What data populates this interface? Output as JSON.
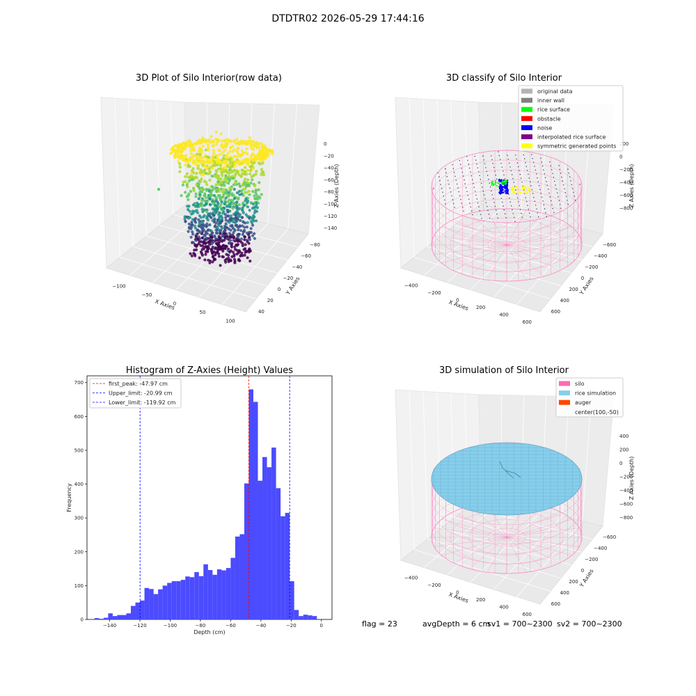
{
  "figure_title": "DTDTR02 2026-05-29 17:44:16",
  "status": {
    "flag": "flag = 23",
    "avg_depth": "avgDepth = 6 cm",
    "sv1": "sv1 = 700~2300",
    "sv2": "sv2 = 700~2300"
  },
  "chart_data": [
    {
      "type": "scatter",
      "title": "3D Plot of Silo Interior(row data)",
      "xlabel": "X Axies",
      "ylabel": "Y Axies",
      "zlabel": "Z Axies (Depth)",
      "x_ticks": [
        "−100",
        "−50",
        "0",
        "50",
        "100"
      ],
      "y_ticks": [
        "−80",
        "−60",
        "−40",
        "−20",
        "0",
        "20",
        "40"
      ],
      "z_ticks": [
        "0",
        "−20",
        "−40",
        "−60",
        "−80",
        "−100",
        "−120",
        "−140"
      ],
      "colormap": [
        "#440154",
        "#3b528b",
        "#21918c",
        "#5ec962",
        "#a9db30",
        "#fde725"
      ]
    },
    {
      "type": "scatter",
      "title": "3D classify of Silo Interior",
      "xlabel": "X Axies",
      "ylabel": "Y Axies",
      "zlabel": "Z Axies (Depth)",
      "x_ticks": [
        "−400",
        "−200",
        "0",
        "200",
        "400",
        "600"
      ],
      "y_ticks": [
        "−600",
        "−400",
        "−200",
        "0",
        "200",
        "400",
        "600"
      ],
      "z_ticks": [
        "200",
        "0",
        "−200",
        "−400",
        "−600",
        "−800"
      ],
      "legend": [
        {
          "label": "original data",
          "color": "#b3b3b3"
        },
        {
          "label": "inner wall",
          "color": "#808080"
        },
        {
          "label": "rice surface",
          "color": "#00ff00"
        },
        {
          "label": "obstacle",
          "color": "#ff0000"
        },
        {
          "label": "noise",
          "color": "#0000ff"
        },
        {
          "label": "interpolated rice surface",
          "color": "#800080"
        },
        {
          "label": "symmetric generated points",
          "color": "#ffff00"
        }
      ],
      "wall_color": "#ff69b4"
    },
    {
      "type": "bar",
      "title": "Histogram of Z-Axies (Height) Values",
      "xlabel": "Depth (cm)",
      "ylabel": "Frequency",
      "xlim": [
        -155,
        7
      ],
      "ylim": [
        0,
        720
      ],
      "x_ticks": [
        -140,
        -120,
        -100,
        -80,
        -60,
        -40,
        -20,
        0
      ],
      "x_tick_labels": [
        "−140",
        "−120",
        "−100",
        "−80",
        "−60",
        "−40",
        "−20",
        "0"
      ],
      "y_ticks": [
        0,
        100,
        200,
        300,
        400,
        500,
        600,
        700
      ],
      "y_tick_labels": [
        "0",
        "100",
        "200",
        "300",
        "400",
        "500",
        "600",
        "700"
      ],
      "bar_color": "#4b4bff",
      "bin_start": -150,
      "bin_width": 3,
      "values": [
        4,
        2,
        5,
        18,
        10,
        13,
        13,
        18,
        40,
        50,
        56,
        93,
        90,
        75,
        89,
        100,
        108,
        113,
        113,
        117,
        127,
        125,
        140,
        128,
        163,
        146,
        132,
        148,
        145,
        152,
        182,
        245,
        252,
        402,
        680,
        643,
        410,
        480,
        450,
        508,
        388,
        305,
        315,
        113,
        28,
        10,
        14,
        12,
        10
      ],
      "lines": [
        {
          "label": "first_peak: -47.97 cm",
          "value": -47.97,
          "color": "#ff0000"
        },
        {
          "label": "Upper_limit: -20.99 cm",
          "value": -20.99,
          "color": "#0000ff"
        },
        {
          "label": "Lower_limit: -119.92 cm",
          "value": -119.92,
          "color": "#0000ff"
        }
      ]
    },
    {
      "type": "scatter",
      "title": "3D simulation of Silo Interior",
      "xlabel": "X Axies",
      "ylabel": "Y Axies",
      "zlabel": "Z Axies (Depth)",
      "x_ticks": [
        "−400",
        "−200",
        "0",
        "200",
        "400",
        "600"
      ],
      "y_ticks": [
        "−600",
        "−400",
        "−200",
        "0",
        "200",
        "400",
        "600"
      ],
      "z_ticks": [
        "400",
        "200",
        "0",
        "−200",
        "−400",
        "−600",
        "−800"
      ],
      "legend": [
        {
          "label": "silo",
          "color": "#ff69b4"
        },
        {
          "label": "rice simulation",
          "color": "#87ceeb"
        },
        {
          "label": "auger",
          "color": "#ff4500"
        },
        {
          "label": "center(100,-50)",
          "color": ""
        }
      ],
      "silo_color": "#ff69b4",
      "rice_color": "#87ceeb"
    }
  ]
}
